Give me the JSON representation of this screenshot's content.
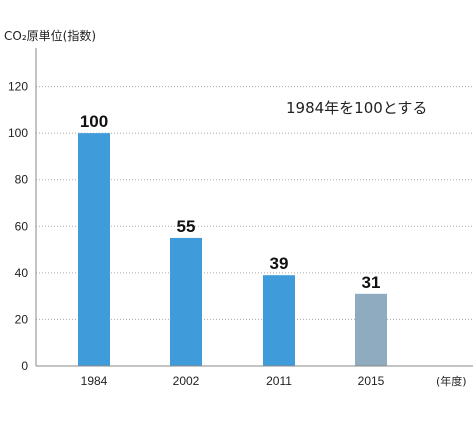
{
  "chart_data": {
    "type": "bar",
    "ylabel": "CO₂原単位(指数)",
    "xunit": "(年度)",
    "annotation": "1984年を100とする",
    "categories": [
      "1984",
      "2002",
      "2011",
      "2015"
    ],
    "values": [
      100,
      55,
      39,
      31
    ],
    "value_labels": [
      "100",
      "55",
      "39",
      "31"
    ],
    "yticks": [
      "0",
      "20",
      "40",
      "60",
      "80",
      "100",
      "120"
    ],
    "ylim": [
      0,
      140
    ],
    "grid": true,
    "colors": {
      "bar": "#3f9bd9",
      "bar_highlight": "#8fabc0",
      "axis": "#888888",
      "grid": "#aaaaaa"
    }
  }
}
